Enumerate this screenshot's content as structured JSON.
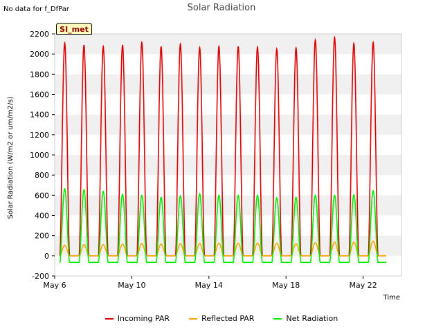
{
  "note": "No data for f_DfPar",
  "site_badge": "SI_met",
  "chart_data": {
    "type": "line",
    "title": "Solar Radiation",
    "xlabel": "Time",
    "ylabel": "Solar Radiation (W/m2 or um/m2/s)",
    "x_range_days": [
      "May 6",
      "May 24"
    ],
    "ylim": [
      -200,
      2200
    ],
    "yticks": [
      -200,
      0,
      200,
      400,
      600,
      800,
      1000,
      1200,
      1400,
      1600,
      1800,
      2000,
      2200
    ],
    "xticks": [
      "May 6",
      "May 10",
      "May 14",
      "May 18",
      "May 22"
    ],
    "grid": "alternating horizontal bands",
    "legend_position": "bottom",
    "days": [
      "May 6",
      "May 7",
      "May 8",
      "May 9",
      "May 10",
      "May 11",
      "May 12",
      "May 13",
      "May 14",
      "May 15",
      "May 16",
      "May 17",
      "May 18",
      "May 19",
      "May 20",
      "May 21",
      "May 22",
      "May 23"
    ],
    "series": [
      {
        "name": "Incoming PAR",
        "color": "#dd0000",
        "night_value": 0,
        "daily_peak": [
          2110,
          2090,
          2075,
          2090,
          2115,
          2075,
          2100,
          2065,
          2075,
          2075,
          2070,
          2050,
          2060,
          2140,
          2165,
          2105,
          2115,
          0
        ]
      },
      {
        "name": "Reflected PAR",
        "color": "#ffa500",
        "night_value": 0,
        "daily_peak": [
          105,
          110,
          110,
          115,
          120,
          115,
          120,
          120,
          125,
          125,
          125,
          125,
          120,
          130,
          135,
          135,
          145,
          0
        ]
      },
      {
        "name": "Net Radiation",
        "color": "#00ee00",
        "night_value": -65,
        "daily_peak": [
          665,
          655,
          640,
          610,
          600,
          580,
          595,
          615,
          600,
          600,
          600,
          575,
          580,
          600,
          600,
          605,
          645,
          0
        ]
      }
    ]
  }
}
